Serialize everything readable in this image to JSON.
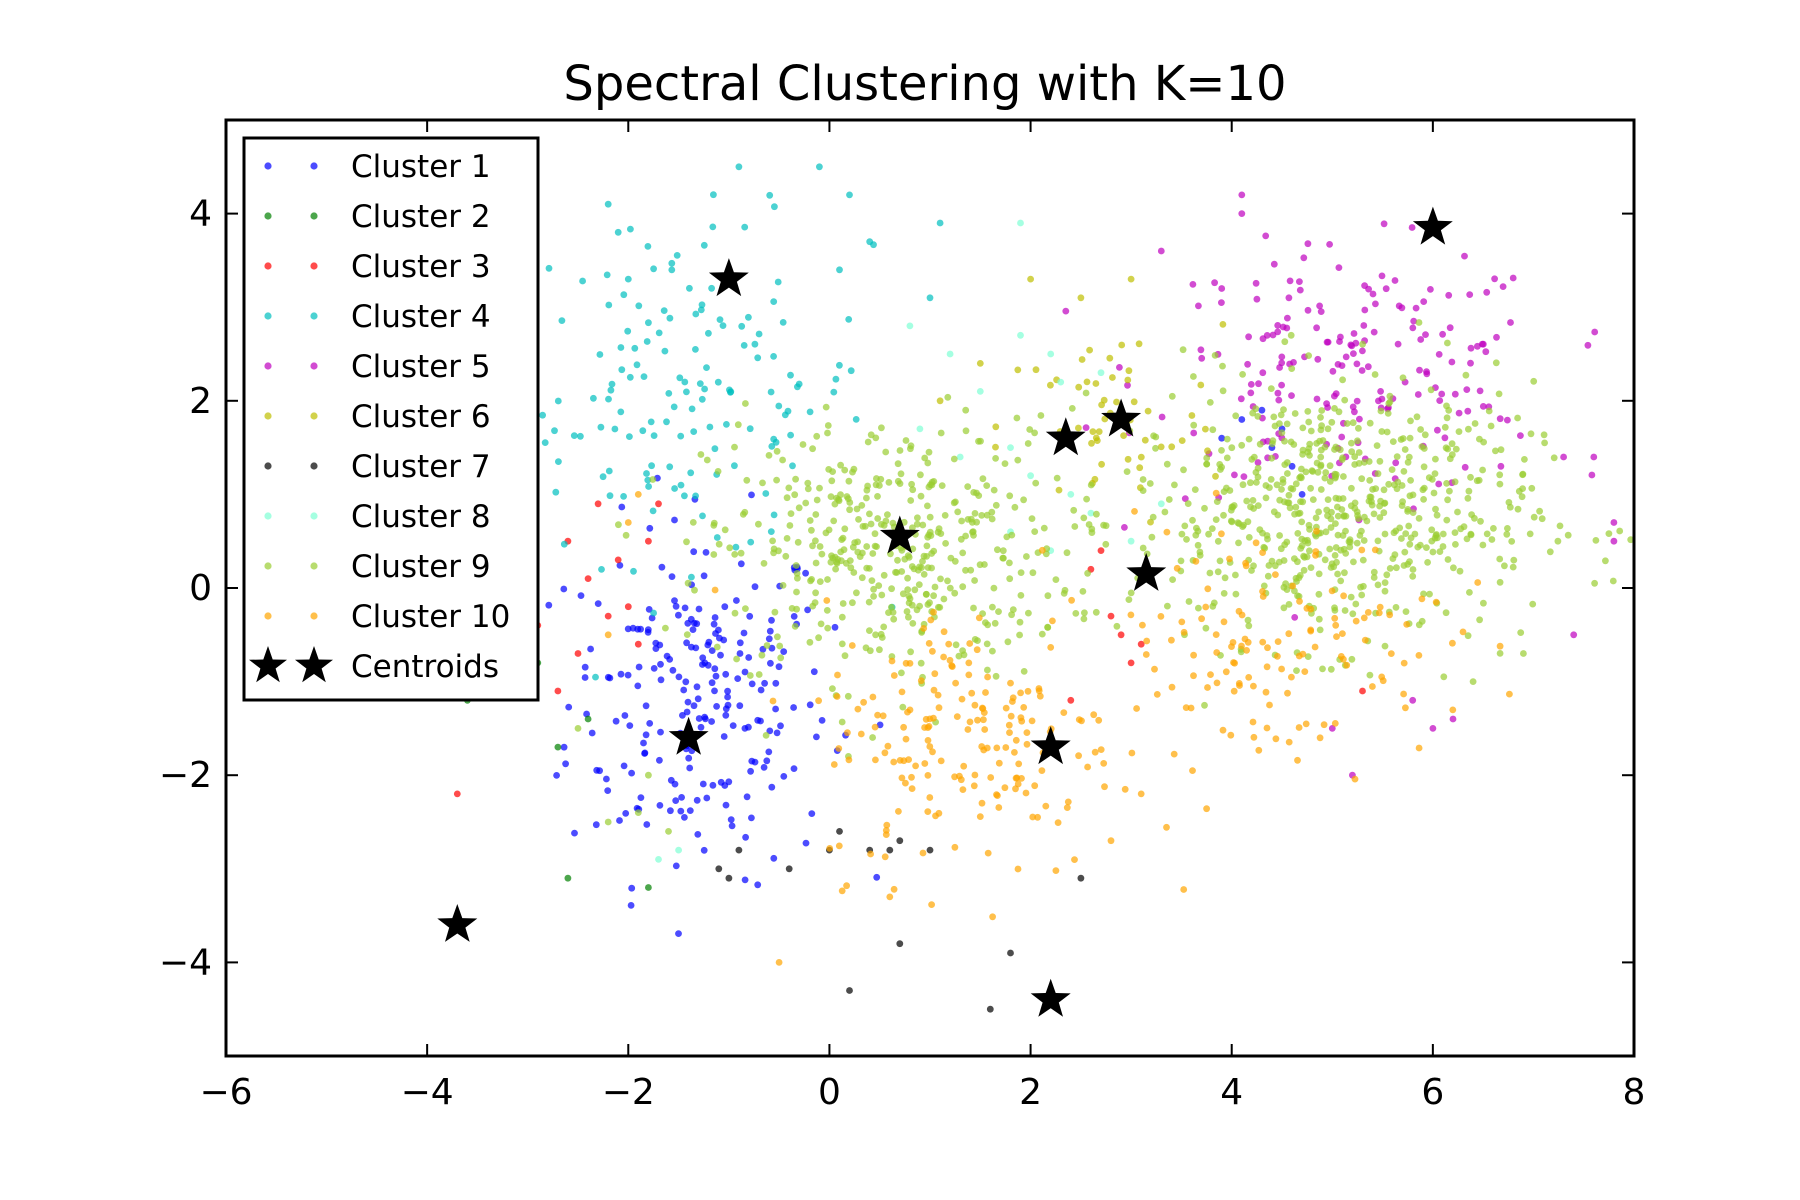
{
  "chart_data": {
    "type": "scatter",
    "title": "Spectral Clustering with K=10",
    "xlabel": "",
    "ylabel": "",
    "xlim": [
      -6,
      8
    ],
    "ylim": [
      -5,
      5
    ],
    "xticks": [
      -6,
      -4,
      -2,
      0,
      2,
      4,
      6,
      8
    ],
    "yticks": [
      -4,
      -2,
      0,
      2,
      4
    ],
    "xtick_labels": [
      "−6",
      "−4",
      "−2",
      "0",
      "2",
      "4",
      "6",
      "8"
    ],
    "ytick_labels": [
      "−4",
      "−2",
      "0",
      "2",
      "4"
    ],
    "grid": false,
    "legend_position": "top-left",
    "series": [
      {
        "name": "Cluster 1",
        "color": "#0000ff",
        "cloud": {
          "cx": -1.3,
          "cy": -1.2,
          "sx": 0.65,
          "sy": 0.95,
          "n": 230
        },
        "points": [
          [
            4.1,
            1.8
          ],
          [
            4.4,
            1.5
          ],
          [
            4.6,
            1.3
          ],
          [
            3.9,
            1.6
          ],
          [
            4.3,
            1.9
          ],
          [
            4.7,
            1.0
          ],
          [
            4.5,
            1.7
          ]
        ]
      },
      {
        "name": "Cluster 2",
        "color": "#008000",
        "points": [
          [
            -3.6,
            -1.2
          ],
          [
            -2.7,
            -1.7
          ],
          [
            -2.6,
            -3.1
          ],
          [
            -1.8,
            -3.2
          ],
          [
            -2.9,
            -0.8
          ],
          [
            -2.4,
            -1.4
          ]
        ]
      },
      {
        "name": "Cluster 3",
        "color": "#ff0000",
        "points": [
          [
            -3.7,
            -2.2
          ],
          [
            -2.9,
            -0.4
          ],
          [
            -2.7,
            -1.1
          ],
          [
            -2.5,
            -0.7
          ],
          [
            -2.3,
            0.9
          ],
          [
            -2.1,
            0.3
          ],
          [
            -2.0,
            -0.2
          ],
          [
            -1.8,
            0.5
          ],
          [
            -1.7,
            0.9
          ],
          [
            -1.9,
            -0.6
          ],
          [
            -2.2,
            -0.3
          ],
          [
            -2.4,
            0.1
          ],
          [
            -2.6,
            0.5
          ],
          [
            2.6,
            0.2
          ],
          [
            2.8,
            -0.3
          ],
          [
            2.9,
            -0.5
          ],
          [
            3.0,
            -0.8
          ],
          [
            2.7,
            0.4
          ],
          [
            3.1,
            -0.6
          ],
          [
            5.3,
            -1.1
          ],
          [
            2.4,
            -1.2
          ]
        ]
      },
      {
        "name": "Cluster 4",
        "color": "#00bfbf",
        "cloud": {
          "cx": -1.4,
          "cy": 2.1,
          "sx": 0.9,
          "sy": 0.9,
          "n": 150
        },
        "points": [
          [
            -0.9,
            4.5
          ],
          [
            -0.1,
            4.5
          ],
          [
            0.2,
            4.2
          ],
          [
            -2.2,
            4.1
          ],
          [
            -2.1,
            3.8
          ],
          [
            0.4,
            3.7
          ],
          [
            1.1,
            3.9
          ],
          [
            -2.0,
            3.3
          ],
          [
            0.1,
            3.4
          ],
          [
            1.0,
            3.1
          ],
          [
            -3.0,
            2.7
          ]
        ]
      },
      {
        "name": "Cluster 5",
        "color": "#bf00bf",
        "cloud": {
          "cx": 5.2,
          "cy": 2.3,
          "sx": 1.0,
          "sy": 0.65,
          "n": 190
        },
        "points": [
          [
            4.1,
            4.2
          ],
          [
            4.1,
            4.0
          ],
          [
            3.3,
            3.6
          ],
          [
            3.9,
            3.2
          ],
          [
            7.3,
            1.4
          ],
          [
            7.6,
            1.4
          ],
          [
            7.8,
            0.7
          ],
          [
            7.8,
            0.5
          ],
          [
            7.4,
            -0.5
          ],
          [
            6.2,
            -1.4
          ],
          [
            5.8,
            -1.2
          ],
          [
            5.0,
            -1.5
          ],
          [
            5.2,
            -2.0
          ],
          [
            6.0,
            -1.5
          ]
        ]
      },
      {
        "name": "Cluster 6",
        "color": "#bfbf00",
        "cloud": {
          "cx": 2.8,
          "cy": 1.7,
          "sx": 0.55,
          "sy": 0.55,
          "n": 55
        },
        "points": [
          [
            2.0,
            3.3
          ],
          [
            2.5,
            3.1
          ],
          [
            3.0,
            3.3
          ],
          [
            1.5,
            2.4
          ],
          [
            1.1,
            2.0
          ]
        ]
      },
      {
        "name": "Cluster 7",
        "color": "#000000",
        "points": [
          [
            -1.1,
            -3.0
          ],
          [
            -1.0,
            -3.1
          ],
          [
            -0.9,
            -2.8
          ],
          [
            -0.4,
            -3.0
          ],
          [
            0.0,
            -2.8
          ],
          [
            0.1,
            -2.6
          ],
          [
            0.4,
            -2.8
          ],
          [
            0.6,
            -2.8
          ],
          [
            0.7,
            -2.7
          ],
          [
            1.0,
            -2.8
          ],
          [
            0.7,
            -3.8
          ],
          [
            0.2,
            -4.3
          ],
          [
            1.6,
            -4.5
          ],
          [
            1.8,
            -3.9
          ],
          [
            2.5,
            -3.1
          ]
        ]
      },
      {
        "name": "Cluster 8",
        "color": "#7fffd4",
        "points": [
          [
            1.9,
            3.9
          ],
          [
            0.8,
            2.8
          ],
          [
            1.2,
            2.5
          ],
          [
            1.9,
            2.7
          ],
          [
            2.2,
            2.5
          ],
          [
            2.3,
            2.2
          ],
          [
            1.5,
            2.1
          ],
          [
            1.8,
            1.5
          ],
          [
            2.0,
            1.2
          ],
          [
            2.4,
            1.0
          ],
          [
            2.6,
            0.8
          ],
          [
            2.2,
            0.4
          ],
          [
            1.8,
            0.6
          ],
          [
            1.3,
            1.4
          ],
          [
            0.9,
            1.7
          ],
          [
            -1.7,
            -2.9
          ],
          [
            -1.5,
            -2.8
          ],
          [
            2.7,
            2.3
          ],
          [
            3.3,
            0.9
          ],
          [
            3.0,
            0.5
          ]
        ]
      },
      {
        "name": "Cluster 9",
        "color": "#9acd32",
        "cloud": {
          "cx": 0.6,
          "cy": 0.4,
          "sx": 0.9,
          "sy": 0.7,
          "n": 430
        },
        "cloud2": {
          "cx": 5.0,
          "cy": 0.8,
          "sx": 1.0,
          "sy": 0.7,
          "n": 620
        },
        "points": [
          [
            -2.5,
            -1.5
          ],
          [
            -2.2,
            -2.5
          ],
          [
            -1.9,
            -2.4
          ],
          [
            -1.6,
            -2.6
          ],
          [
            -1.8,
            -2.0
          ],
          [
            6.9,
            -0.7
          ],
          [
            6.4,
            -1.0
          ]
        ]
      },
      {
        "name": "Cluster 10",
        "color": "#ffa500",
        "cloud": {
          "cx": 1.4,
          "cy": -1.6,
          "sx": 0.75,
          "sy": 0.75,
          "n": 180
        },
        "cloud2": {
          "cx": 4.3,
          "cy": -0.6,
          "sx": 0.9,
          "sy": 0.65,
          "n": 140
        },
        "points": [
          [
            -0.5,
            -4.0
          ],
          [
            0.6,
            -3.3
          ],
          [
            2.8,
            -2.7
          ],
          [
            3.1,
            -2.2
          ],
          [
            -1.9,
            1.0
          ],
          [
            -2.0,
            0.7
          ],
          [
            -2.2,
            -0.5
          ]
        ]
      }
    ],
    "centroids": {
      "name": "Centroids",
      "color": "#000000",
      "points": [
        [
          -3.7,
          -3.6
        ],
        [
          -1.4,
          -1.6
        ],
        [
          -1.0,
          3.3
        ],
        [
          0.7,
          0.55
        ],
        [
          2.2,
          -1.7
        ],
        [
          2.2,
          -4.4
        ],
        [
          2.35,
          1.6
        ],
        [
          2.9,
          1.8
        ],
        [
          3.15,
          0.15
        ],
        [
          6.0,
          3.85
        ]
      ]
    }
  }
}
